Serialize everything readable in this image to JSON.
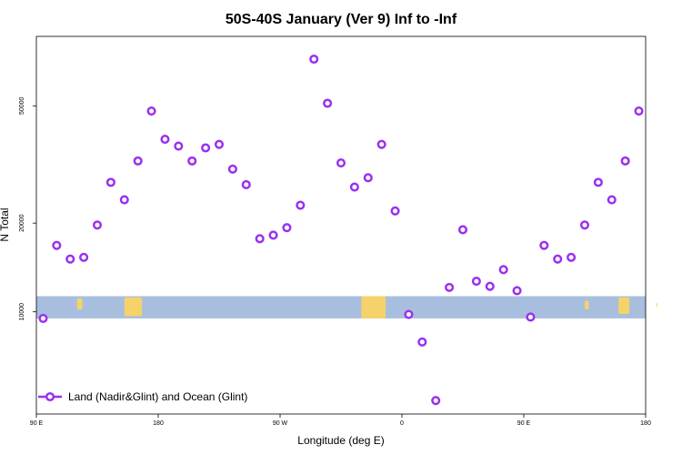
{
  "chart_data": {
    "type": "scatter",
    "title": "50S-40S January (Ver 9)   Inf to -Inf",
    "xlabel": "Longitude (deg E)",
    "ylabel": "N Total",
    "xlim": [
      90,
      540
    ],
    "ylim": [
      4500,
      86000
    ],
    "yscale": "log",
    "x_ticks": [
      {
        "value": 90,
        "label": "90 E"
      },
      {
        "value": 180,
        "label": "180"
      },
      {
        "value": 270,
        "label": "90 W"
      },
      {
        "value": 360,
        "label": "0"
      },
      {
        "value": 450,
        "label": "90 E"
      },
      {
        "value": 540,
        "label": "180"
      }
    ],
    "y_ticks": [
      {
        "value": 10000,
        "label": "10000"
      },
      {
        "value": 20000,
        "label": "20000"
      },
      {
        "value": 50000,
        "label": "50000"
      }
    ],
    "band": {
      "y_range": [
        9500,
        11300
      ],
      "color": "#a8bedf",
      "land_color": "#f5d36a"
    },
    "legend": {
      "position": "bottom-left"
    },
    "series": [
      {
        "name": "Land (Nadir&Glint) and Ocean (Glint)",
        "color": "#9b30f0",
        "marker": "open-circle",
        "x": [
          95,
          105,
          115,
          125,
          135,
          145,
          155,
          165,
          175,
          185,
          195,
          205,
          215,
          225,
          235,
          245,
          255,
          265,
          275,
          285,
          295,
          305,
          315,
          325,
          335,
          345,
          355,
          365,
          375,
          385,
          395,
          405,
          415,
          425,
          435,
          445,
          455,
          465,
          475,
          485,
          495,
          505,
          515,
          525,
          535
        ],
        "y": [
          9500,
          16800,
          15100,
          15300,
          19700,
          27500,
          24000,
          32500,
          48000,
          38500,
          36500,
          32500,
          36000,
          37000,
          30500,
          27000,
          17700,
          18200,
          19300,
          23000,
          72000,
          51000,
          32000,
          26500,
          28500,
          37000,
          22000,
          9800,
          7900,
          5000,
          12100,
          19000,
          12700,
          12200,
          13900,
          11800,
          9600,
          16800,
          15100,
          15300,
          19700,
          27500,
          24000,
          32500,
          48000
        ]
      }
    ]
  }
}
